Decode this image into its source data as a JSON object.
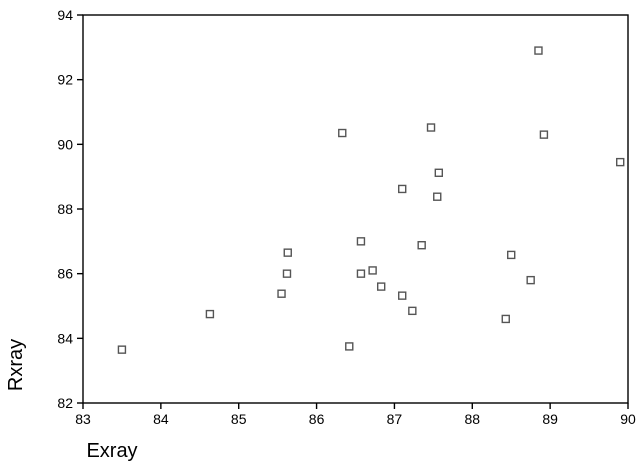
{
  "chart_data": {
    "type": "scatter",
    "title": "",
    "xlabel": "Exray",
    "ylabel": "Rxray",
    "xlim": [
      83,
      90
    ],
    "ylim": [
      82,
      94
    ],
    "x_ticks": [
      "83",
      "84",
      "85",
      "86",
      "87",
      "88",
      "89",
      "90"
    ],
    "y_ticks": [
      "82",
      "84",
      "86",
      "88",
      "90",
      "92",
      "94"
    ],
    "grid": false,
    "legend": "none",
    "marker": "hollow-square",
    "points": [
      {
        "x": 83.5,
        "y": 83.65
      },
      {
        "x": 84.63,
        "y": 84.75
      },
      {
        "x": 85.55,
        "y": 85.38
      },
      {
        "x": 85.62,
        "y": 86.0
      },
      {
        "x": 85.63,
        "y": 86.65
      },
      {
        "x": 86.33,
        "y": 90.35
      },
      {
        "x": 86.42,
        "y": 83.75
      },
      {
        "x": 86.57,
        "y": 87.0
      },
      {
        "x": 86.57,
        "y": 86.0
      },
      {
        "x": 86.72,
        "y": 86.1
      },
      {
        "x": 86.83,
        "y": 85.6
      },
      {
        "x": 87.1,
        "y": 85.32
      },
      {
        "x": 87.1,
        "y": 88.62
      },
      {
        "x": 87.23,
        "y": 84.85
      },
      {
        "x": 87.35,
        "y": 86.88
      },
      {
        "x": 87.47,
        "y": 90.52
      },
      {
        "x": 87.55,
        "y": 88.38
      },
      {
        "x": 87.57,
        "y": 89.12
      },
      {
        "x": 88.43,
        "y": 84.6
      },
      {
        "x": 88.5,
        "y": 86.58
      },
      {
        "x": 88.75,
        "y": 85.8
      },
      {
        "x": 88.85,
        "y": 92.9
      },
      {
        "x": 88.92,
        "y": 90.3
      },
      {
        "x": 89.9,
        "y": 89.45
      }
    ]
  }
}
